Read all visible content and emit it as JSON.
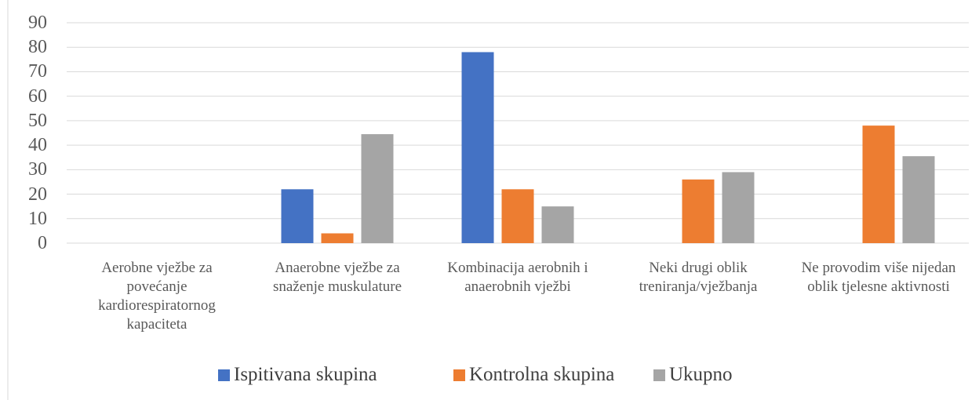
{
  "chart_data": {
    "type": "bar",
    "categories": [
      "Aerobne vježbe za povećanje kardiorespiratornog kapaciteta",
      "Anaerobne vježbe za snaženje muskulature",
      "Kombinacija aerobnih i anaerobnih vježbi",
      "Neki drugi oblik treniranja/vježbanja",
      "Ne provodim više nijedan oblik tjelesne aktivnosti"
    ],
    "series": [
      {
        "name": "Ispitivana skupina",
        "color": "#4472c4",
        "values": [
          0,
          22,
          78,
          0,
          0
        ]
      },
      {
        "name": "Kontrolna skupina",
        "color": "#ed7d31",
        "values": [
          0,
          4,
          22,
          26,
          48
        ]
      },
      {
        "name": "Ukupno",
        "color": "#a5a5a5",
        "values": [
          0,
          44.5,
          15,
          29,
          35.5
        ]
      }
    ],
    "ylim": [
      0,
      90
    ],
    "yticks": [
      0,
      10,
      20,
      30,
      40,
      50,
      60,
      70,
      80,
      90
    ],
    "grid": true,
    "legend": "bottom"
  }
}
